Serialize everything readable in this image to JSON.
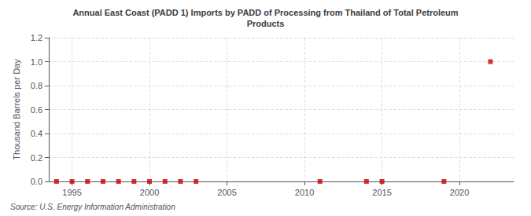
{
  "chart_data": {
    "type": "scatter",
    "title": "Annual East Coast (PADD 1) Imports by PADD of Processing from Thailand of Total Petroleum\nProducts",
    "y_label": "Thousand Barrels per Day",
    "source": "Source: U.S. Energy Information Administration",
    "x": [
      1994,
      1995,
      1996,
      1997,
      1998,
      1999,
      2000,
      2001,
      2002,
      2003,
      2011,
      2014,
      2015,
      2019,
      2022
    ],
    "values": [
      0.0,
      0.0,
      0.0,
      0.0,
      0.0,
      0.0,
      0.0,
      0.0,
      0.0,
      0.0,
      0.0,
      0.0,
      0.0,
      0.0,
      1.0
    ],
    "color": "#cc0000",
    "marker": "square",
    "xlim": [
      1993.5,
      2023.5
    ],
    "xticks": [
      1995,
      2000,
      2005,
      2010,
      2015,
      2020
    ],
    "ylim": [
      0.0,
      1.2
    ],
    "yticks": [
      {
        "value": 0.0,
        "label": "0.0"
      },
      0.2,
      0.4,
      0.6,
      0.8,
      {
        "value": 1.0,
        "label": "1.0"
      },
      1.2
    ],
    "grid": true
  }
}
